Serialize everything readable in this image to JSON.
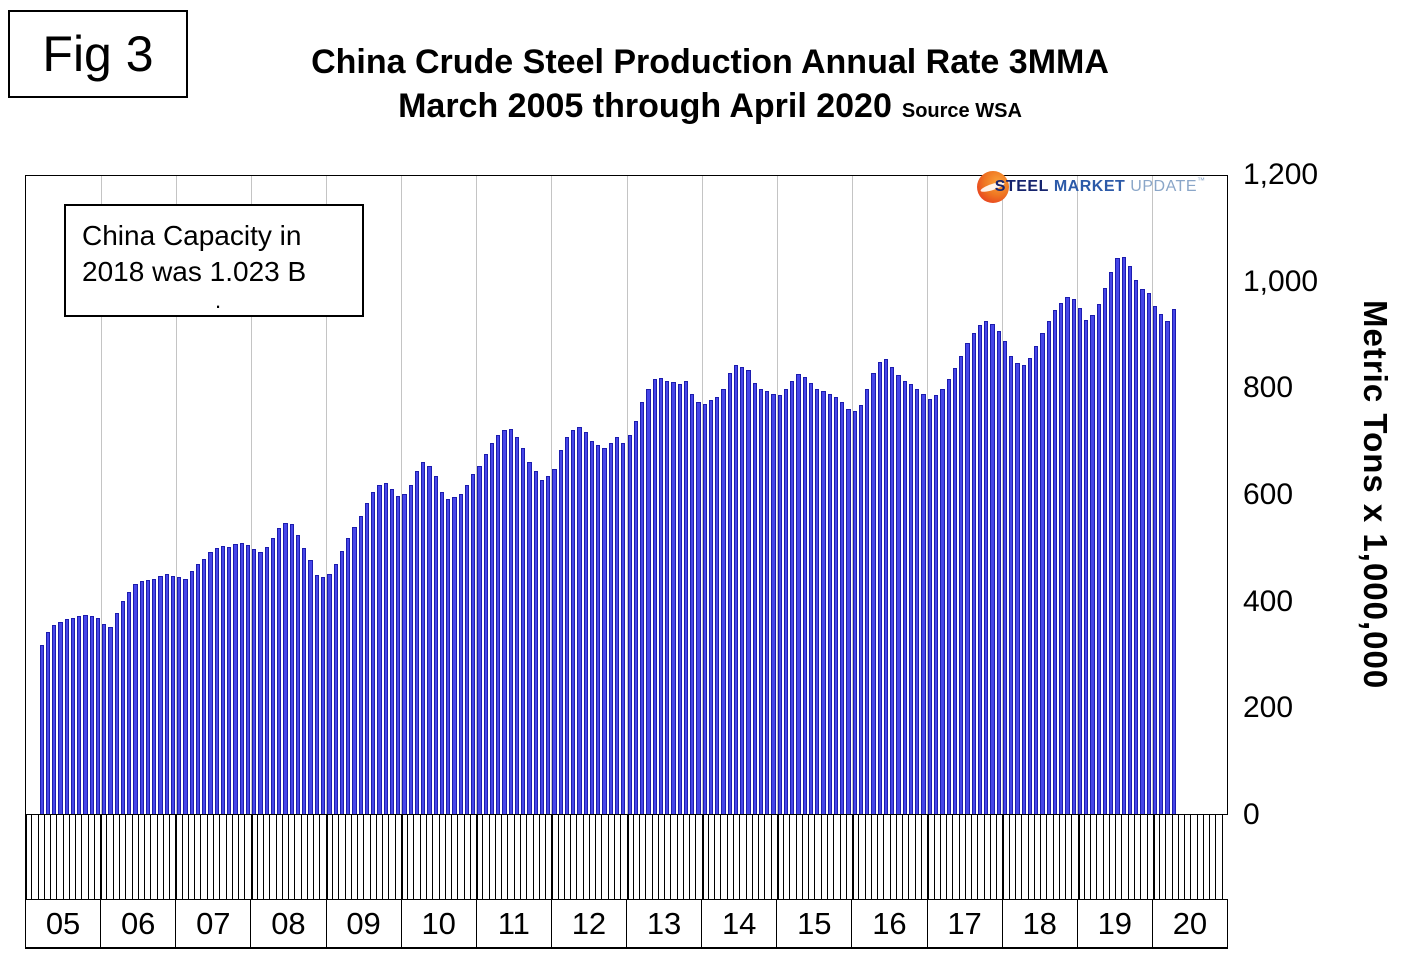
{
  "fig_label": "Fig 3",
  "title": {
    "line1": "China Crude Steel Production Annual Rate 3MMA",
    "line2": "March 2005 through April 2020",
    "source": "Source WSA"
  },
  "annotation": {
    "line1": "China Capacity in",
    "line2": "2018 was 1.023 B",
    "dot": "."
  },
  "logo": {
    "word1": "STEEL",
    "word2": "MARKET",
    "word3": "UPDATE",
    "tm": "™"
  },
  "y_axis": {
    "label": "Metric Tons x 1,000,000",
    "tick_values": [
      0,
      200,
      400,
      600,
      800,
      1000,
      1200
    ],
    "tick_labels": [
      "0",
      "200",
      "400",
      "600",
      "800",
      "1,000",
      "1,200"
    ]
  },
  "x_axis": {
    "years": [
      "05",
      "06",
      "07",
      "08",
      "09",
      "10",
      "11",
      "12",
      "13",
      "14",
      "15",
      "16",
      "17",
      "18",
      "19",
      "20"
    ]
  },
  "chart_data": {
    "type": "bar",
    "title": "China Crude Steel Production Annual Rate 3MMA",
    "subtitle": "March 2005 through April 2020",
    "source": "Source WSA",
    "ylabel": "Metric Tons x 1,000,000",
    "ylim": [
      0,
      1200
    ],
    "grid": "vertical-year-lines-only",
    "legend": "none",
    "bar_color": "#4646e8",
    "frequency": "monthly",
    "x_start": "2005-03",
    "x_end": "2020-04",
    "unit": "metric tons x 1,000,000 (annualized rate, 3MMA)",
    "values": [
      318,
      342,
      355,
      362,
      366,
      368,
      372,
      375,
      372,
      368,
      358,
      352,
      378,
      400,
      418,
      432,
      438,
      440,
      442,
      448,
      452,
      448,
      446,
      442,
      458,
      470,
      480,
      492,
      500,
      504,
      502,
      508,
      510,
      506,
      498,
      492,
      502,
      520,
      538,
      548,
      545,
      525,
      500,
      478,
      450,
      445,
      452,
      470,
      495,
      520,
      540,
      560,
      585,
      605,
      618,
      622,
      612,
      598,
      602,
      618,
      645,
      662,
      655,
      635,
      605,
      592,
      596,
      602,
      618,
      640,
      655,
      678,
      698,
      712,
      722,
      725,
      710,
      688,
      662,
      645,
      628,
      635,
      648,
      685,
      710,
      722,
      728,
      718,
      702,
      694,
      688,
      698,
      710,
      698,
      712,
      740,
      775,
      800,
      818,
      820,
      815,
      812,
      808,
      815,
      790,
      775,
      772,
      778,
      785,
      800,
      830,
      845,
      840,
      835,
      810,
      800,
      795,
      790,
      788,
      800,
      815,
      828,
      822,
      810,
      800,
      795,
      790,
      785,
      775,
      762,
      758,
      770,
      800,
      830,
      850,
      855,
      840,
      825,
      815,
      808,
      800,
      790,
      780,
      788,
      800,
      818,
      838,
      862,
      885,
      905,
      920,
      928,
      922,
      908,
      890,
      862,
      848,
      845,
      858,
      880,
      905,
      928,
      948,
      962,
      972,
      968,
      952,
      930,
      938,
      960,
      990,
      1020,
      1045,
      1048,
      1030,
      1005,
      988,
      980,
      955,
      940,
      928,
      950
    ]
  }
}
